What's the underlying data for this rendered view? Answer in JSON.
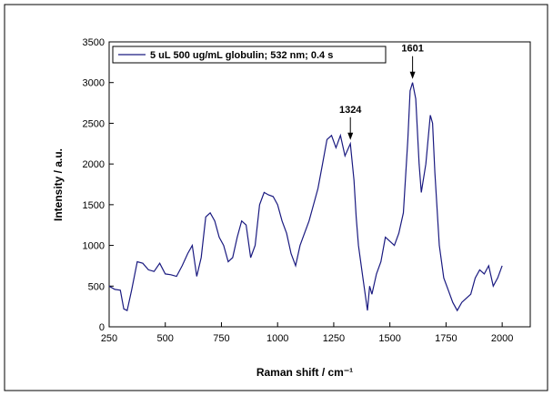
{
  "chart_data": {
    "type": "line",
    "xlabel": "Raman shift / cm⁻¹",
    "ylabel": "Intensity / a.u.",
    "x": [
      250,
      275,
      300,
      315,
      330,
      350,
      375,
      400,
      425,
      450,
      475,
      500,
      525,
      550,
      575,
      600,
      620,
      640,
      660,
      680,
      700,
      720,
      740,
      760,
      780,
      800,
      820,
      840,
      860,
      880,
      900,
      920,
      940,
      960,
      980,
      1000,
      1020,
      1040,
      1060,
      1080,
      1100,
      1120,
      1140,
      1160,
      1180,
      1200,
      1220,
      1240,
      1260,
      1280,
      1300,
      1324,
      1340,
      1350,
      1360,
      1380,
      1400,
      1410,
      1420,
      1440,
      1460,
      1480,
      1500,
      1520,
      1540,
      1560,
      1580,
      1590,
      1601,
      1615,
      1630,
      1640,
      1660,
      1680,
      1690,
      1700,
      1720,
      1740,
      1760,
      1780,
      1800,
      1820,
      1840,
      1860,
      1880,
      1900,
      1920,
      1940,
      1960,
      1980,
      2000
    ],
    "series": [
      {
        "name": "5 uL 500 ug/mL globulin; 532 nm; 0.4 s",
        "color": "#1a1a80",
        "values": [
          500,
          460,
          450,
          220,
          200,
          450,
          800,
          780,
          700,
          680,
          780,
          650,
          640,
          620,
          750,
          900,
          1000,
          620,
          850,
          1350,
          1400,
          1300,
          1100,
          1000,
          800,
          850,
          1100,
          1300,
          1250,
          850,
          1000,
          1500,
          1650,
          1620,
          1600,
          1500,
          1300,
          1150,
          900,
          750,
          1000,
          1150,
          1300,
          1500,
          1700,
          2000,
          2300,
          2350,
          2200,
          2350,
          2100,
          2250,
          1800,
          1350,
          1000,
          600,
          200,
          500,
          400,
          650,
          800,
          1100,
          1050,
          1000,
          1150,
          1400,
          2300,
          2900,
          3000,
          2800,
          2000,
          1650,
          2000,
          2600,
          2500,
          1900,
          1000,
          600,
          450,
          300,
          200,
          300,
          350,
          400,
          600,
          700,
          650,
          750,
          500,
          600,
          750
        ]
      }
    ],
    "xlim": [
      250,
      2125
    ],
    "ylim": [
      0,
      3500
    ],
    "xticks": [
      250,
      500,
      750,
      1000,
      1250,
      1500,
      1750,
      2000
    ],
    "yticks": [
      0,
      500,
      1000,
      1500,
      2000,
      2500,
      3000,
      3500
    ],
    "annotations": [
      {
        "text": "1324",
        "x": 1324,
        "y": 2250
      },
      {
        "text": "1601",
        "x": 1601,
        "y": 3000
      }
    ],
    "legend": "upper left"
  }
}
